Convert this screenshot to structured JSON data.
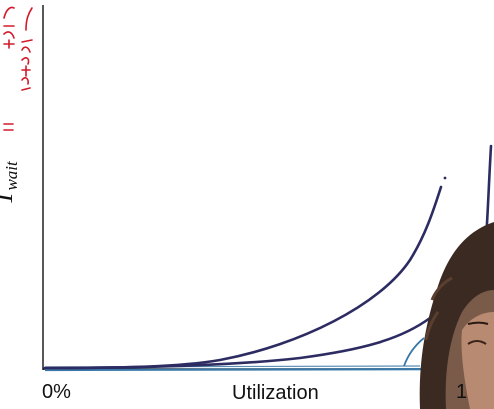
{
  "axes": {
    "y_label_main": "T",
    "y_label_sub": "wait",
    "x_start": "0%",
    "x_label": "Utilization",
    "x_end": "1"
  },
  "annotation": {
    "symbol": "=",
    "handwritten_text": "ADDED TIME",
    "color": "#d21a2a"
  },
  "colors": {
    "curve_ink": "#2d2c62",
    "baseline_ink": "#3a78a8",
    "axis_ink": "#111111"
  },
  "presenter_visible": true
}
